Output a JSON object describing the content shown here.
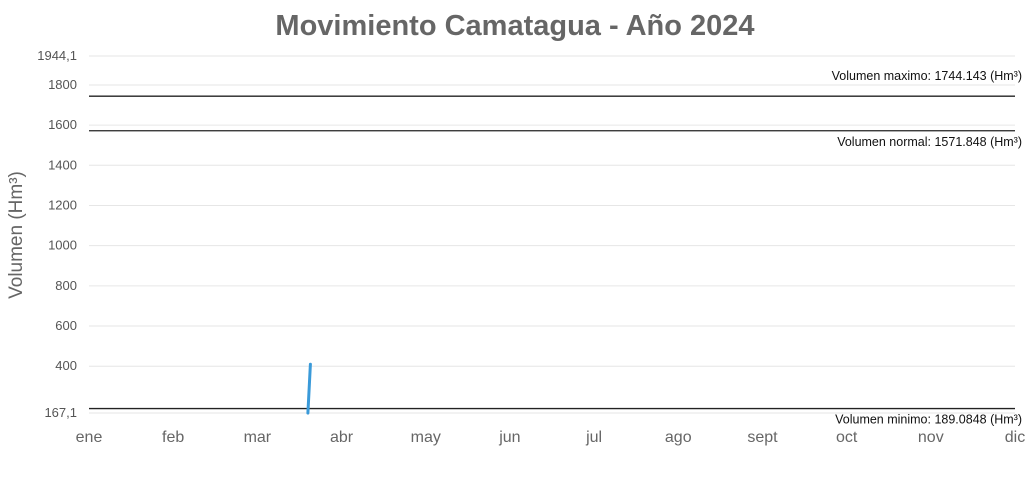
{
  "chart_data": {
    "type": "line",
    "title": "Movimiento Camatagua - Año 2024",
    "xlabel": "",
    "ylabel": "Volumen (Hm³)",
    "ylim": [
      167.1,
      1944.1
    ],
    "grid": true,
    "x_categories": [
      "ene",
      "feb",
      "mar",
      "abr",
      "may",
      "jun",
      "jul",
      "ago",
      "sept",
      "oct",
      "nov",
      "dic"
    ],
    "y_ticks": [
      {
        "value": 167.1,
        "label": "167,1"
      },
      {
        "value": 400,
        "label": "400"
      },
      {
        "value": 600,
        "label": "600"
      },
      {
        "value": 800,
        "label": "800"
      },
      {
        "value": 1000,
        "label": "1000"
      },
      {
        "value": 1200,
        "label": "1200"
      },
      {
        "value": 1400,
        "label": "1400"
      },
      {
        "value": 1600,
        "label": "1600"
      },
      {
        "value": 1800,
        "label": "1800"
      },
      {
        "value": 1944.1,
        "label": "1944,1"
      }
    ],
    "reference_lines": [
      {
        "value": 1744.143,
        "label": "Volumen maximo: 1744.143 (Hm³)",
        "label_position": "above"
      },
      {
        "value": 1571.848,
        "label": "Volumen normal: 1571.848 (Hm³)",
        "label_position": "below"
      },
      {
        "value": 189.0848,
        "label": "Volumen minimo: 189.0848 (Hm³)",
        "label_position": "below"
      }
    ],
    "series": [
      {
        "color": "#3a9ad9",
        "points": [
          {
            "x": 2.6,
            "y": 167.1
          },
          {
            "x": 2.63,
            "y": 410
          }
        ]
      }
    ]
  }
}
